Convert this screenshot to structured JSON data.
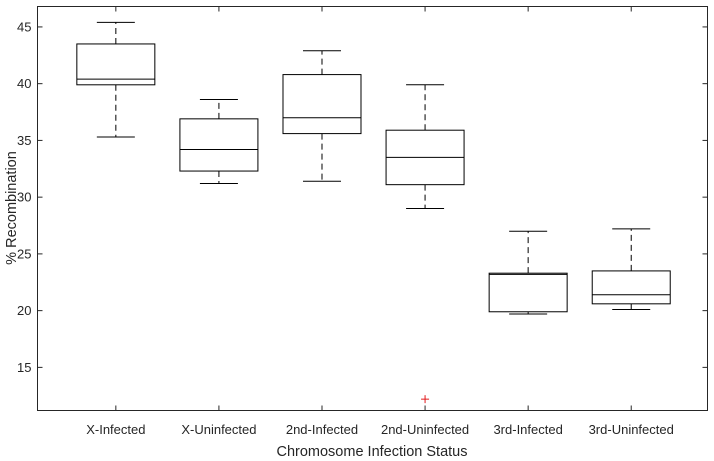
{
  "chart_data": {
    "type": "boxplot",
    "title": "",
    "xlabel": "Chromosome Infection Status",
    "ylabel": "% Recombination",
    "categories": [
      "X-Infected",
      "X-Uninfected",
      "2nd-Infected",
      "2nd-Uninfected",
      "3rd-Infected",
      "3rd-Uninfected"
    ],
    "ylim": [
      11.2,
      46.8
    ],
    "yticks": [
      15,
      20,
      25,
      30,
      35,
      40,
      45
    ],
    "grid": false,
    "boxes": [
      {
        "category": "X-Infected",
        "whisker_low": 35.3,
        "q1": 39.9,
        "median": 40.4,
        "q3": 43.5,
        "whisker_high": 45.4,
        "outliers": []
      },
      {
        "category": "X-Uninfected",
        "whisker_low": 31.2,
        "q1": 32.3,
        "median": 34.2,
        "q3": 36.9,
        "whisker_high": 38.6,
        "outliers": []
      },
      {
        "category": "2nd-Infected",
        "whisker_low": 31.4,
        "q1": 35.6,
        "median": 37.0,
        "q3": 40.8,
        "whisker_high": 42.9,
        "outliers": []
      },
      {
        "category": "2nd-Uninfected",
        "whisker_low": 29.0,
        "q1": 31.1,
        "median": 33.5,
        "q3": 35.9,
        "whisker_high": 39.9,
        "outliers": [
          12.2
        ]
      },
      {
        "category": "3rd-Infected",
        "whisker_low": 19.7,
        "q1": 19.9,
        "median": 23.2,
        "q3": 23.3,
        "whisker_high": 27.0,
        "outliers": []
      },
      {
        "category": "3rd-Uninfected",
        "whisker_low": 20.1,
        "q1": 20.6,
        "median": 21.4,
        "q3": 23.5,
        "whisker_high": 27.2,
        "outliers": []
      }
    ],
    "colors": {
      "box": "#000000",
      "axis": "#262626",
      "outlier": "#e31a1c",
      "background": "#ffffff"
    }
  }
}
